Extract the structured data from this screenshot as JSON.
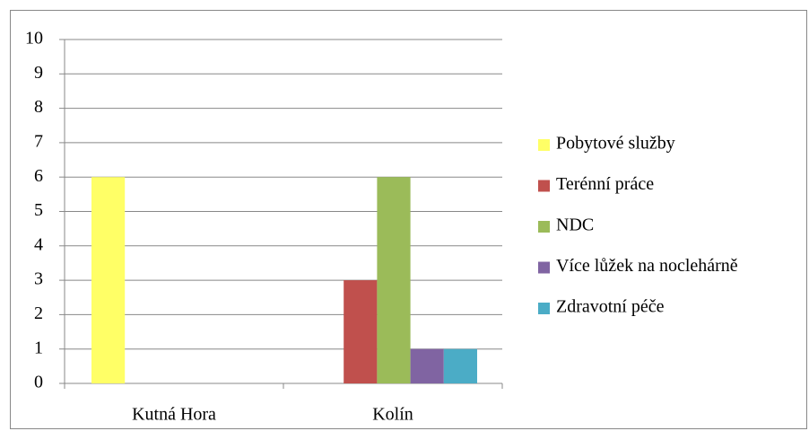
{
  "chart_data": {
    "type": "bar",
    "categories": [
      "Kutná Hora",
      "Kolín"
    ],
    "series": [
      {
        "name": "Pobytové služby",
        "color": "#ffff66",
        "values": [
          6,
          0
        ]
      },
      {
        "name": "Terénní práce",
        "color": "#c0504d",
        "values": [
          0,
          3
        ]
      },
      {
        "name": "NDC",
        "color": "#9bbb59",
        "values": [
          0,
          6
        ]
      },
      {
        "name": "Více lůžek na noclehárně",
        "color": "#8064a2",
        "values": [
          0,
          1
        ]
      },
      {
        "name": "Zdravotní péče",
        "color": "#4bacc6",
        "values": [
          0,
          1
        ]
      }
    ],
    "ylim": [
      0,
      10
    ],
    "yticks": [
      0,
      1,
      2,
      3,
      4,
      5,
      6,
      7,
      8,
      9,
      10
    ],
    "grid": true,
    "legend": "right"
  }
}
